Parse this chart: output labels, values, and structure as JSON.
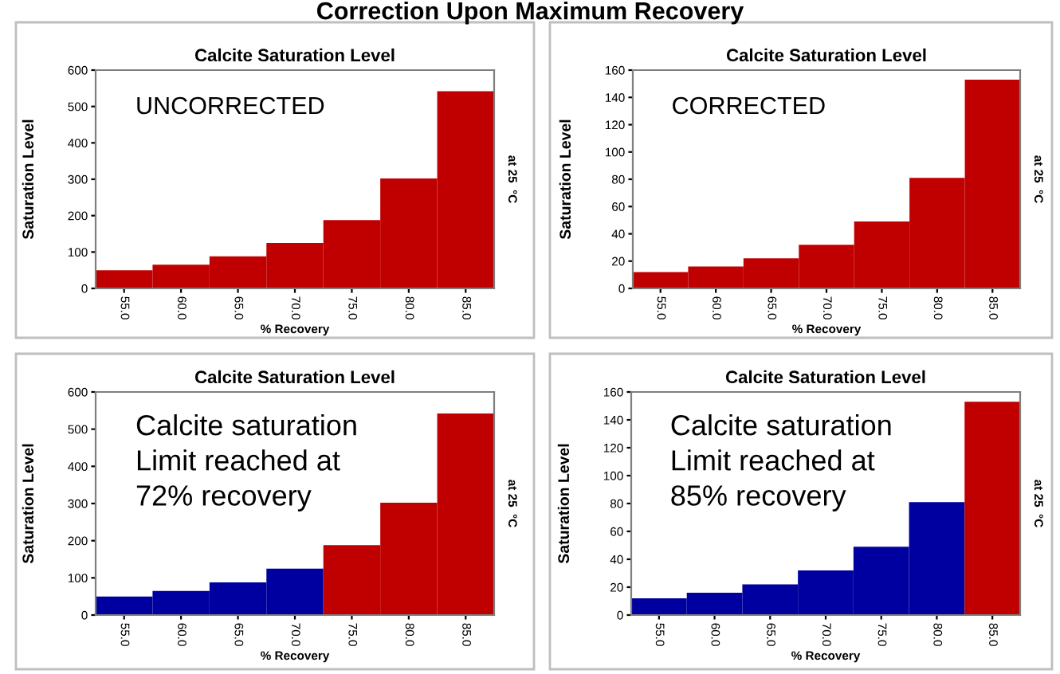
{
  "chart_data": [
    {
      "type": "bar",
      "title": "Calcite Saturation Level",
      "xlabel": "% Recovery",
      "ylabel": "Saturation Level",
      "y2label": "at 25  °C",
      "annotations": [
        "Correction Upon Maximum Recovery",
        "UNCORRECTED"
      ],
      "categories": [
        "55.0",
        "60.0",
        "65.0",
        "70.0",
        "75.0",
        "80.0",
        "85.0"
      ],
      "values": [
        50,
        65,
        88,
        125,
        188,
        302,
        542
      ],
      "colors": [
        "#c00000",
        "#c00000",
        "#c00000",
        "#c00000",
        "#c00000",
        "#c00000",
        "#c00000"
      ],
      "ylim": [
        0,
        600
      ],
      "yticks": [
        0,
        100,
        200,
        300,
        400,
        500,
        600
      ],
      "grid": false,
      "legend": false
    },
    {
      "type": "bar",
      "title": "Calcite Saturation Level",
      "xlabel": "% Recovery",
      "ylabel": "Saturation Level",
      "y2label": "at 25  °C",
      "annotations": [
        "CORRECTED"
      ],
      "categories": [
        "55.0",
        "60.0",
        "65.0",
        "70.0",
        "75.0",
        "80.0",
        "85.0"
      ],
      "values": [
        12,
        16,
        22,
        32,
        49,
        81,
        153
      ],
      "colors": [
        "#c00000",
        "#c00000",
        "#c00000",
        "#c00000",
        "#c00000",
        "#c00000",
        "#c00000"
      ],
      "ylim": [
        0,
        160
      ],
      "yticks": [
        0,
        20,
        40,
        60,
        80,
        100,
        120,
        140,
        160
      ],
      "grid": false,
      "legend": false
    },
    {
      "type": "bar",
      "title": "Calcite Saturation Level",
      "xlabel": "% Recovery",
      "ylabel": "Saturation Level",
      "y2label": "at 25  °C",
      "annotations": [
        "Calcite saturation\nLimit reached at\n72% recovery"
      ],
      "categories": [
        "55.0",
        "60.0",
        "65.0",
        "70.0",
        "75.0",
        "80.0",
        "85.0"
      ],
      "values": [
        50,
        65,
        88,
        125,
        188,
        302,
        542
      ],
      "colors": [
        "#0000a0",
        "#0000a0",
        "#0000a0",
        "#0000a0",
        "#c00000",
        "#c00000",
        "#c00000"
      ],
      "ylim": [
        0,
        600
      ],
      "yticks": [
        0,
        100,
        200,
        300,
        400,
        500,
        600
      ],
      "grid": false,
      "legend": false
    },
    {
      "type": "bar",
      "title": "Calcite Saturation Level",
      "xlabel": "% Recovery",
      "ylabel": "Saturation Level",
      "y2label": "at 25  °C",
      "annotations": [
        "Calcite saturation\nLimit reached at\n85% recovery"
      ],
      "categories": [
        "55.0",
        "60.0",
        "65.0",
        "70.0",
        "75.0",
        "80.0",
        "85.0"
      ],
      "values": [
        12,
        16,
        22,
        32,
        49,
        81,
        153
      ],
      "colors": [
        "#0000a0",
        "#0000a0",
        "#0000a0",
        "#0000a0",
        "#0000a0",
        "#0000a0",
        "#c00000"
      ],
      "ylim": [
        0,
        160
      ],
      "yticks": [
        0,
        20,
        40,
        60,
        80,
        100,
        120,
        140,
        160
      ],
      "grid": false,
      "legend": false
    }
  ]
}
